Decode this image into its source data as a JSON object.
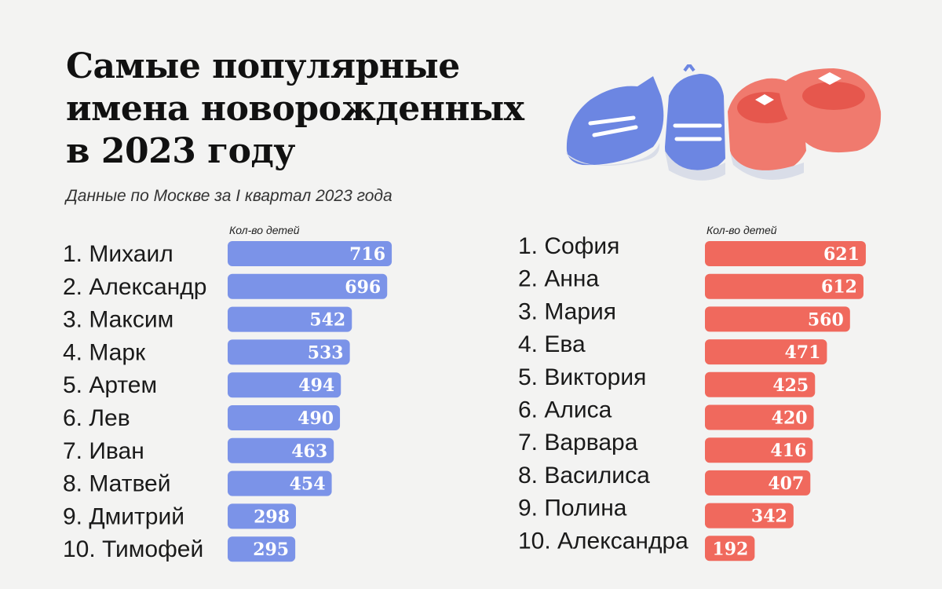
{
  "title_lines": [
    "Самые популярные",
    "имена новорожденных",
    "в 2023 году"
  ],
  "subtitle": "Данные по Москве за I квартал 2023 года",
  "colors": {
    "boys": "#7b93e8",
    "girls": "#f0695d"
  },
  "chart_data": [
    {
      "type": "bar",
      "orientation": "horizontal",
      "column_header": "Кол-во детей",
      "color": "#7b93e8",
      "categories": [
        "1. Михаил",
        "2. Александр",
        "3. Максим",
        "4. Марк",
        "5. Артем",
        "6. Лев",
        "7. Иван",
        "8. Матвей",
        "9. Дмитрий",
        "10. Тимофей"
      ],
      "values": [
        716,
        696,
        542,
        533,
        494,
        490,
        463,
        454,
        298,
        295
      ]
    },
    {
      "type": "bar",
      "orientation": "horizontal",
      "column_header": "Кол-во детей",
      "color": "#f0695d",
      "categories": [
        "1. София",
        "2. Анна",
        "3. Мария",
        "4. Ева",
        "5. Виктория",
        "6. Алиса",
        "7. Варвара",
        "8. Василиса",
        "9. Полина",
        "10. Александра"
      ],
      "values": [
        621,
        612,
        560,
        471,
        425,
        420,
        416,
        407,
        342,
        192
      ]
    }
  ]
}
